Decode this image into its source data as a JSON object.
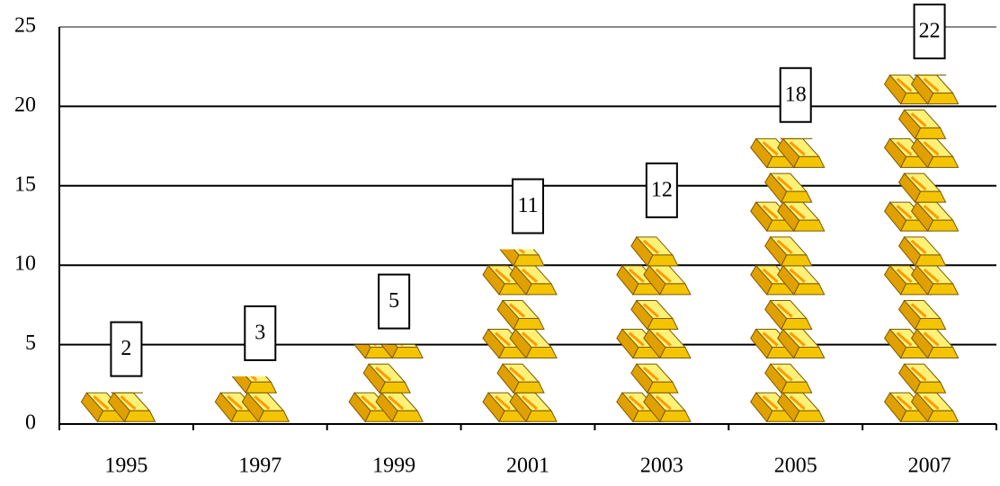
{
  "chart_data": {
    "type": "pictograph",
    "categories": [
      "1995",
      "1997",
      "1999",
      "2001",
      "2003",
      "2005",
      "2007"
    ],
    "values": [
      2,
      3,
      5,
      11,
      12,
      18,
      22
    ],
    "color": "#ffd700",
    "ylim": [
      0,
      25
    ],
    "yticks": [
      0,
      5,
      10,
      15,
      20,
      25
    ],
    "grid": true
  }
}
